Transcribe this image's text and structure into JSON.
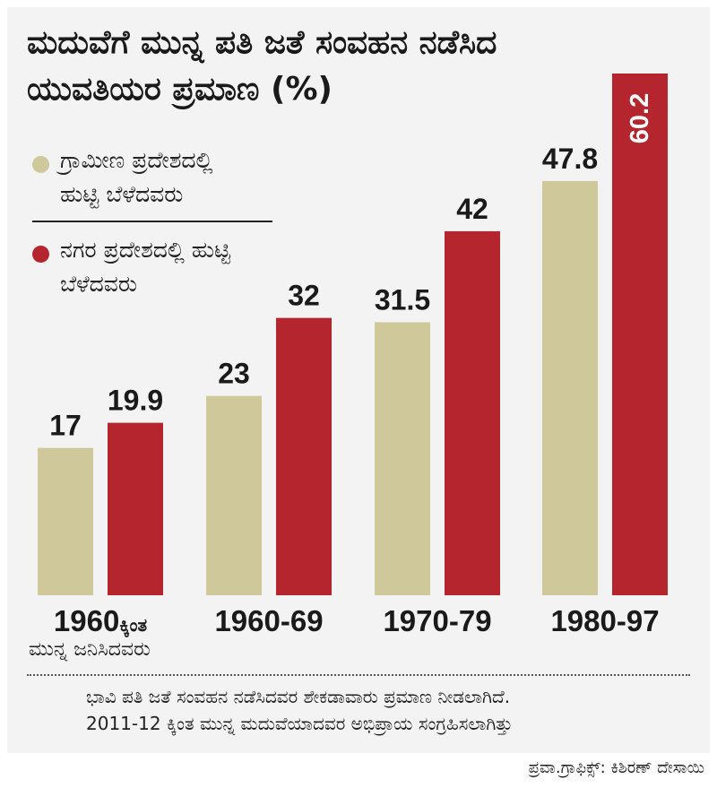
{
  "title": {
    "line1": "ಮದುವೆಗೆ ಮುನ್ನ ಪತಿ ಜತೆ ಸಂವಹನ ನಡೆಸಿದ",
    "line2": "ಯುವತಿಯರ ಪ್ರಮಾಣ (%)"
  },
  "legend": [
    {
      "label": "ಗ್ರಾಮೀಣ ಪ್ರದೇಶದಲ್ಲಿ ಹುಟ್ಟಿ ಬೆಳೆದವರು",
      "color": "#cfc89a"
    },
    {
      "label": "ನಗರ ಪ್ರದೇಶದಲ್ಲಿ ಹುಟ್ಟಿ ಬೆಳೆದವರು",
      "color": "#b5252d"
    }
  ],
  "chart_data": {
    "type": "bar",
    "title": "ಮದುವೆಗೆ ಮುನ್ನ ಪತಿ ಜತೆ ಸಂವಹನ ನಡೆಸಿದ ಯುವತಿಯರ ಪ್ರಮಾಣ (%)",
    "categories": [
      "1960",
      "1960-69",
      "1970-79",
      "1980-97"
    ],
    "category_suffix": "ಕ್ಕಿಂತ",
    "category_sub": "ಮುನ್ನ ಜನಿಸಿದವರು",
    "series": [
      {
        "name": "ಗ್ರಾಮೀಣ ಪ್ರದೇಶದಲ್ಲಿ ಹುಟ್ಟಿ ಬೆಳೆದವರು",
        "values": [
          17,
          23,
          31.5,
          47.8
        ],
        "color": "#cfc89a"
      },
      {
        "name": "ನಗರ ಪ್ರದೇಶದಲ್ಲಿ ಹುಟ್ಟಿ ಬೆಳೆದವರು",
        "values": [
          19.9,
          32,
          42,
          60.2
        ],
        "color": "#b5252d"
      }
    ],
    "value_labels": [
      [
        "17",
        "23",
        "31.5",
        "47.8"
      ],
      [
        "19.9",
        "32",
        "42",
        "60.2"
      ]
    ],
    "ylim": [
      0,
      60.2
    ],
    "xlabel": "",
    "ylabel": ""
  },
  "note": {
    "line1": "ಭಾವಿ ಪತಿ ಜತೆ ಸಂವಹನ ನಡೆಸಿದವರ ಶೇಕಡಾವಾರು ಪ್ರಮಾಣ ನೀಡಲಾಗಿದೆ.",
    "line2": "2011-12 ಕ್ಕಿಂತ ಮುನ್ನ ಮದುವೆಯಾದವರ ಅಭಿಪ್ರಾಯ ಸಂಗ್ರಹಿಸಲಾಗಿತ್ತು"
  },
  "credit": "ಪ್ರವಾ.ಗ್ರಾಫಿಕ್ಸ್: ಕಿಶಿರಣ್ ದೇಸಾಯಿ"
}
